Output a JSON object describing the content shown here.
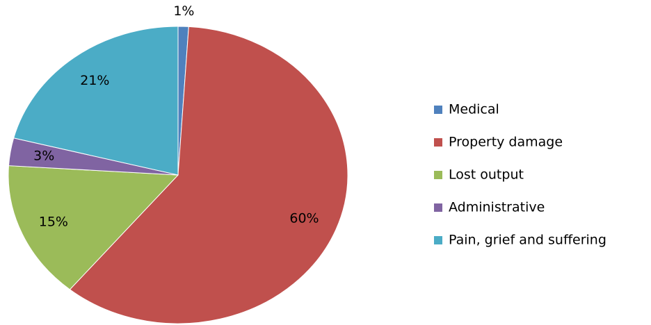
{
  "chart_data": {
    "type": "pie",
    "categories": [
      "Medical",
      "Property damage",
      "Lost output",
      "Administrative",
      "Pain, grief and suffering"
    ],
    "values": [
      1,
      60,
      15,
      3,
      21
    ],
    "value_labels": [
      "1%",
      "60%",
      "15%",
      "3%",
      "21%"
    ],
    "colors": [
      "#4f81bd",
      "#c0504d",
      "#9bbb59",
      "#8064a2",
      "#4bacc6"
    ],
    "legend": "right"
  }
}
